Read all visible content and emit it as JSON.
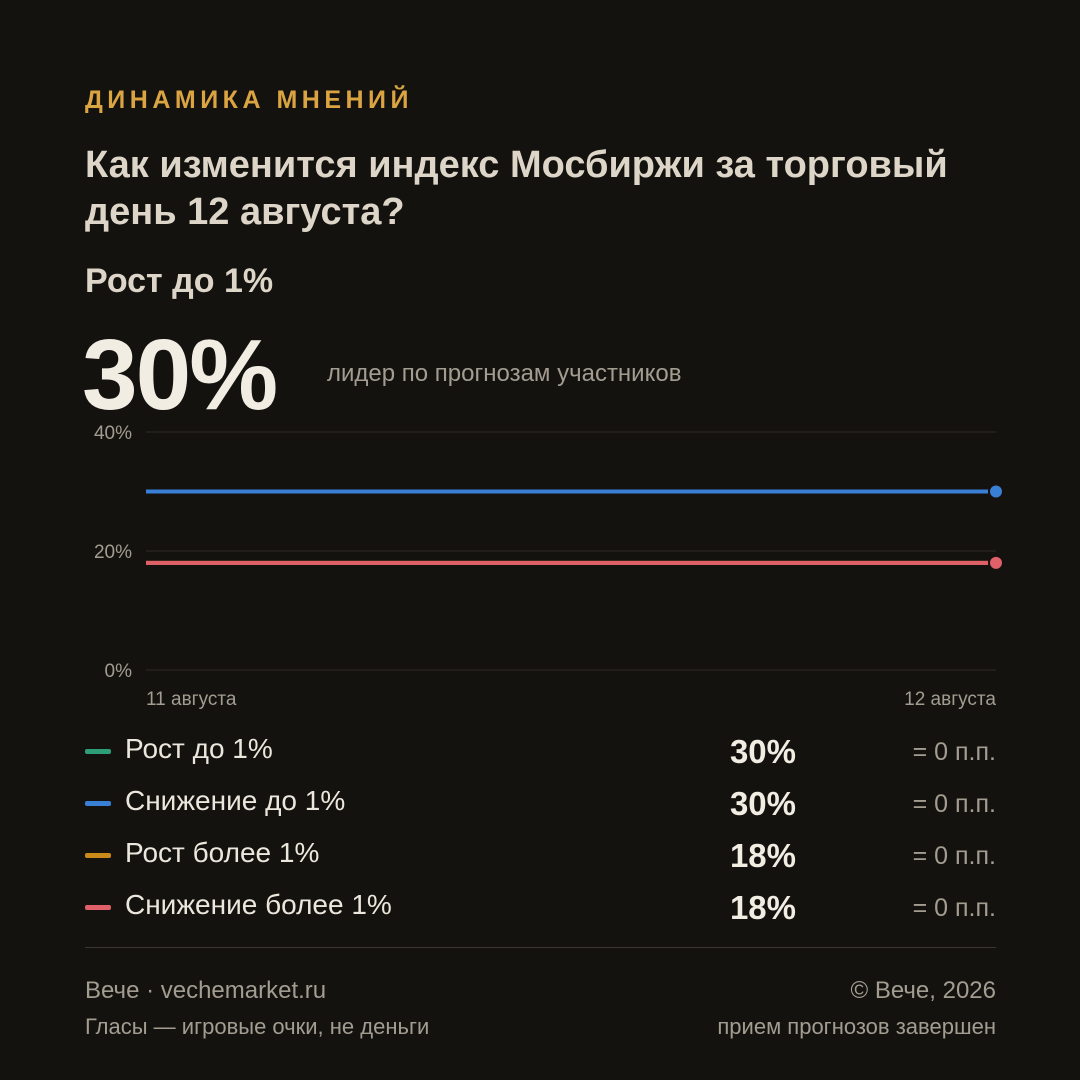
{
  "header": {
    "kicker": "ДИНАМИКА МНЕНИЙ",
    "question": "Как изменится индекс Мосбиржи за торговый день 12 августа?",
    "leader_label": "Рост до 1%",
    "leader_value": "30%",
    "leader_caption": "лидер по прогнозам участников"
  },
  "chart_data": {
    "type": "line",
    "x": [
      "11 августа",
      "12 августа"
    ],
    "y_ticks": [
      "0%",
      "20%",
      "40%"
    ],
    "ylim": [
      0,
      40
    ],
    "grid": true,
    "series": [
      {
        "name": "Рост до 1%",
        "color": "#2e9e78",
        "values": [
          30,
          30
        ]
      },
      {
        "name": "Снижение до 1%",
        "color": "#3a7fd6",
        "values": [
          30,
          30
        ]
      },
      {
        "name": "Рост более 1%",
        "color": "#c98a1a",
        "values": [
          18,
          18
        ]
      },
      {
        "name": "Снижение более 1%",
        "color": "#e0606a",
        "values": [
          18,
          18
        ]
      }
    ]
  },
  "legend": [
    {
      "name": "Рост до 1%",
      "color": "#2e9e78",
      "value": "30%",
      "delta": "= 0 п.п."
    },
    {
      "name": "Снижение до 1%",
      "color": "#3a7fd6",
      "value": "30%",
      "delta": "= 0 п.п."
    },
    {
      "name": "Рост более 1%",
      "color": "#c98a1a",
      "value": "18%",
      "delta": "= 0 п.п."
    },
    {
      "name": "Снижение более 1%",
      "color": "#e0606a",
      "value": "18%",
      "delta": "= 0 п.п."
    }
  ],
  "footer": {
    "brand": "Вече · vechemarket.ru",
    "note": "Гласы — игровые очки, не деньги",
    "copyright": "© Вече, 2026",
    "status": "прием прогнозов завершен"
  }
}
